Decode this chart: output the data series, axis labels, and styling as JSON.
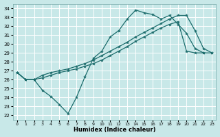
{
  "background_color": "#c8e8e8",
  "grid_color": "#ffffff",
  "line_color": "#1a6b6b",
  "xlabel": "Humidex (Indice chaleur)",
  "xlim": [
    -0.5,
    23.5
  ],
  "ylim": [
    21.5,
    34.5
  ],
  "yticks": [
    22,
    23,
    24,
    25,
    26,
    27,
    28,
    29,
    30,
    31,
    32,
    33,
    34
  ],
  "xticks": [
    0,
    1,
    2,
    3,
    4,
    5,
    6,
    7,
    8,
    9,
    10,
    11,
    12,
    13,
    14,
    15,
    16,
    17,
    18,
    19,
    20,
    21,
    22,
    23
  ],
  "line1_x": [
    0,
    1,
    2,
    3,
    4,
    5,
    6,
    7,
    8,
    9,
    10,
    11,
    12,
    13,
    14,
    15,
    16,
    17,
    18,
    19,
    20,
    21,
    22
  ],
  "line1_y": [
    26.8,
    26.0,
    26.0,
    24.8,
    24.1,
    23.2,
    22.2,
    24.0,
    26.3,
    28.4,
    29.2,
    30.8,
    31.5,
    32.8,
    33.8,
    33.5,
    33.3,
    32.8,
    33.2,
    32.2,
    31.2,
    29.5,
    29.0
  ],
  "line2_x": [
    0,
    1,
    2,
    3,
    4,
    5,
    6,
    7,
    8,
    9,
    10,
    11,
    12,
    13,
    14,
    15,
    16,
    17,
    18,
    19,
    20,
    21,
    22,
    23
  ],
  "line2_y": [
    26.8,
    26.0,
    26.0,
    26.5,
    26.8,
    27.0,
    27.2,
    27.5,
    27.8,
    28.2,
    28.7,
    29.2,
    29.7,
    30.2,
    30.8,
    31.3,
    31.8,
    32.3,
    32.8,
    33.2,
    33.2,
    31.5,
    29.5,
    29.0
  ],
  "line3_x": [
    0,
    1,
    2,
    3,
    4,
    5,
    6,
    7,
    8,
    9,
    10,
    11,
    12,
    13,
    14,
    15,
    16,
    17,
    18,
    19,
    20,
    21,
    22,
    23
  ],
  "line3_y": [
    26.8,
    26.0,
    26.0,
    26.2,
    26.5,
    26.8,
    27.0,
    27.2,
    27.5,
    27.8,
    28.2,
    28.7,
    29.2,
    29.7,
    30.3,
    30.8,
    31.3,
    31.8,
    32.2,
    32.5,
    29.2,
    29.0,
    29.0,
    29.0
  ]
}
